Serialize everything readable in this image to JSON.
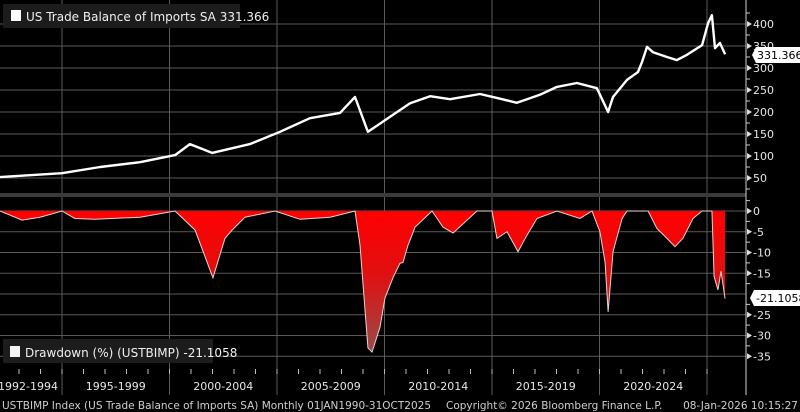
{
  "chart_data": [
    {
      "type": "line",
      "title": "US Trade Balance of Imports SA 331.366",
      "legend": "US Trade Balance of Imports SA 331.366",
      "last_value_label": "331.366",
      "ylim": [
        0,
        440
      ],
      "yticks": [
        50,
        100,
        150,
        200,
        250,
        300,
        350,
        400
      ],
      "ytick_labels": [
        "50",
        "100",
        "150",
        "200",
        "250",
        "300",
        "350",
        "400"
      ],
      "grid": true,
      "color": "#ffffff",
      "x": [
        1992.12,
        1995.0,
        1996.77,
        1998.63,
        2000.26,
        2000.95,
        2001.98,
        2003.74,
        2005.14,
        2006.53,
        2007.93,
        2008.63,
        2009.23,
        2010.26,
        2011.19,
        2012.12,
        2013.05,
        2014.44,
        2015.23,
        2016.16,
        2017.23,
        2018.02,
        2018.95,
        2019.88,
        2020.4,
        2020.63,
        2021.28,
        2021.79,
        2021.98,
        2022.21,
        2022.49,
        2023.14,
        2023.6,
        2024.07,
        2024.77,
        2025.05,
        2025.23,
        2025.37,
        2025.6,
        2025.84
      ],
      "y": [
        52,
        61,
        75,
        86,
        102,
        127,
        107,
        127,
        155,
        186,
        198,
        234,
        155,
        189,
        220,
        236,
        229,
        241,
        232,
        221,
        239,
        257,
        266,
        254,
        200,
        234,
        273,
        291,
        314,
        348,
        336,
        325,
        318,
        330,
        352,
        402,
        420,
        345,
        357,
        331.366
      ]
    },
    {
      "type": "area",
      "title": "Drawdown (%) (USTBIMP) -21.1058",
      "legend": "Drawdown (%) (USTBIMP) -21.1058",
      "last_value_label": "-21.1058",
      "ylim": [
        -37,
        3
      ],
      "yticks": [
        0,
        -5,
        -10,
        -15,
        -25,
        -30,
        -35
      ],
      "ytick_labels": [
        "0",
        "-5",
        "-10",
        "-15",
        "-25",
        "-30",
        "-35"
      ],
      "grid": true,
      "color": "#ff0000",
      "x": [
        1992.12,
        1993.14,
        1993.98,
        1995.0,
        1995.6,
        1996.53,
        1998.63,
        2000.26,
        2001.19,
        2002.02,
        2002.58,
        2002.91,
        2003.51,
        2004.91,
        2006.07,
        2007.47,
        2008.63,
        2008.86,
        2009.23,
        2009.42,
        2009.79,
        2010.02,
        2010.4,
        2010.72,
        2010.86,
        2011.09,
        2011.42,
        2012.21,
        2012.72,
        2013.19,
        2013.84,
        2014.3,
        2015.0,
        2015.23,
        2015.7,
        2016.21,
        2016.63,
        2017.09,
        2018.02,
        2019.09,
        2019.65,
        2020.02,
        2020.26,
        2020.4,
        2020.63,
        2021.05,
        2021.28,
        2022.26,
        2022.67,
        2023.14,
        2023.51,
        2023.88,
        2024.35,
        2024.77,
        2025.23,
        2025.33,
        2025.51,
        2025.65,
        2025.84
      ],
      "y": [
        0,
        -2.2,
        -1.5,
        0,
        -1.8,
        -2,
        -1.5,
        0,
        -4.6,
        -16.1,
        -6.6,
        -4.6,
        -1.5,
        0,
        -2,
        -1.5,
        0,
        -8.2,
        -33,
        -34,
        -28,
        -21,
        -16,
        -12.6,
        -12.4,
        -8.3,
        -3.9,
        0,
        -3.9,
        -5.3,
        -2.2,
        0,
        0,
        -6.6,
        -5,
        -9.8,
        -5.8,
        -1.8,
        0,
        -1.8,
        0,
        -5,
        -12.4,
        -24.3,
        -9.8,
        -1.8,
        0,
        0,
        -4.2,
        -6.6,
        -8.6,
        -6.6,
        -1.8,
        0,
        0,
        -15.8,
        -19,
        -14.5,
        -21.1058
      ]
    }
  ],
  "x_axis": {
    "period_labels": [
      {
        "label": "1992-1994",
        "from": 1992.1,
        "to": 1995
      },
      {
        "label": "1995-1999",
        "from": 1995,
        "to": 2000
      },
      {
        "label": "2000-2004",
        "from": 2000,
        "to": 2005
      },
      {
        "label": "2005-2009",
        "from": 2005,
        "to": 2010
      },
      {
        "label": "2010-2014",
        "from": 2010,
        "to": 2015
      },
      {
        "label": "2015-2019",
        "from": 2015,
        "to": 2020
      },
      {
        "label": "2020-2024",
        "from": 2020,
        "to": 2025
      }
    ],
    "gridline_years": [
      1995,
      2000,
      2005,
      2010,
      2015,
      2020,
      2025
    ]
  },
  "footer": {
    "description": "USTBIMP Index (US Trade Balance of Imports SA) Monthly 01JAN1990-31OCT2025",
    "copyright": "Copyright© 2026 Bloomberg Finance L.P.",
    "timestamp": "08-Jan-2026 10:15:27"
  }
}
